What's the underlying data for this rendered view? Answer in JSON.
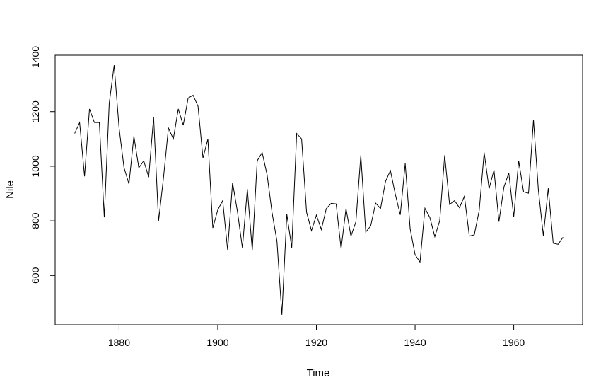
{
  "chart_data": {
    "type": "line",
    "xlabel": "Time",
    "ylabel": "Nile",
    "xlim": [
      1871,
      1970
    ],
    "ylim": [
      456,
      1370
    ],
    "xticks": [
      1880,
      1900,
      1920,
      1940,
      1960
    ],
    "yticks": [
      600,
      800,
      1000,
      1200,
      1400
    ],
    "series": [
      {
        "x": [
          1871,
          1872,
          1873,
          1874,
          1875,
          1876,
          1877,
          1878,
          1879,
          1880,
          1881,
          1882,
          1883,
          1884,
          1885,
          1886,
          1887,
          1888,
          1889,
          1890,
          1891,
          1892,
          1893,
          1894,
          1895,
          1896,
          1897,
          1898,
          1899,
          1900,
          1901,
          1902,
          1903,
          1904,
          1905,
          1906,
          1907,
          1908,
          1909,
          1910,
          1911,
          1912,
          1913,
          1914,
          1915,
          1916,
          1917,
          1918,
          1919,
          1920,
          1921,
          1922,
          1923,
          1924,
          1925,
          1926,
          1927,
          1928,
          1929,
          1930,
          1931,
          1932,
          1933,
          1934,
          1935,
          1936,
          1937,
          1938,
          1939,
          1940,
          1941,
          1942,
          1943,
          1944,
          1945,
          1946,
          1947,
          1948,
          1949,
          1950,
          1951,
          1952,
          1953,
          1954,
          1955,
          1956,
          1957,
          1958,
          1959,
          1960,
          1961,
          1962,
          1963,
          1964,
          1965,
          1966,
          1967,
          1968,
          1969,
          1970
        ],
        "values": [
          1120,
          1160,
          963,
          1210,
          1160,
          1160,
          813,
          1230,
          1370,
          1140,
          995,
          935,
          1110,
          994,
          1020,
          960,
          1180,
          799,
          958,
          1140,
          1100,
          1210,
          1150,
          1250,
          1260,
          1220,
          1030,
          1100,
          774,
          840,
          874,
          694,
          940,
          833,
          701,
          916,
          692,
          1020,
          1050,
          969,
          831,
          726,
          456,
          824,
          702,
          1120,
          1100,
          832,
          764,
          821,
          768,
          845,
          864,
          862,
          698,
          845,
          744,
          796,
          1040,
          759,
          781,
          865,
          845,
          944,
          984,
          897,
          822,
          1010,
          771,
          676,
          649,
          846,
          812,
          742,
          801,
          1040,
          860,
          874,
          848,
          890,
          744,
          749,
          838,
          1050,
          918,
          986,
          797,
          923,
          975,
          815,
          1020,
          906,
          901,
          1170,
          912,
          746,
          919,
          718,
          714,
          740
        ]
      }
    ]
  }
}
